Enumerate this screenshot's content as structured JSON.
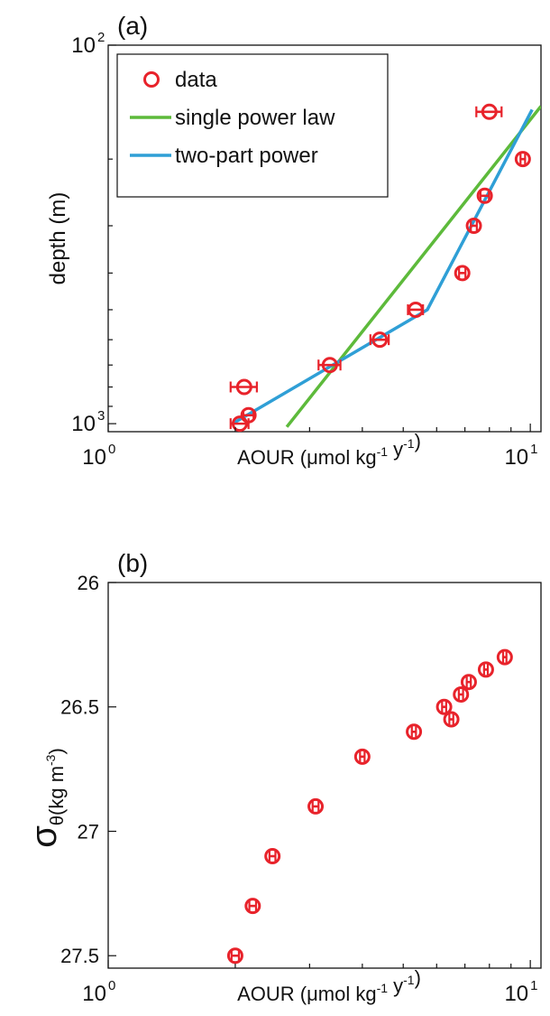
{
  "colors": {
    "data": "#e8232b",
    "single_power": "#5dba3b",
    "two_part": "#2f9fd6",
    "axis": "#111111"
  },
  "chart_data": [
    {
      "panel_label": "(a)",
      "type": "scatter",
      "xscale": "log",
      "yscale": "log",
      "y_reversed": true,
      "xlim": [
        1,
        10.6
      ],
      "ylim": [
        1050,
        100
      ],
      "xlabel": "AOUR (μmol kg⁻¹ y⁻¹)",
      "ylabel": "depth (m)",
      "x_ticks": [
        {
          "value": 1,
          "base": "10",
          "exp": "0"
        },
        {
          "value": 10,
          "base": "10",
          "exp": "1"
        }
      ],
      "y_ticks": [
        {
          "value": 100,
          "base": "10",
          "exp": "2"
        },
        {
          "value": 1000,
          "base": "10",
          "exp": "3"
        }
      ],
      "legend": {
        "position": "top-left",
        "entries": [
          {
            "label": "data",
            "kind": "marker",
            "color_key": "data"
          },
          {
            "label": "single power law",
            "kind": "line",
            "color_key": "single_power"
          },
          {
            "label": "two-part power",
            "kind": "line",
            "color_key": "two_part"
          }
        ]
      },
      "series": [
        {
          "name": "data",
          "kind": "points",
          "color_key": "data",
          "points": [
            {
              "x": 8.0,
              "y": 150,
              "xerr": 0.55
            },
            {
              "x": 9.6,
              "y": 200,
              "xerr": 0.12
            },
            {
              "x": 7.8,
              "y": 250,
              "xerr": 0.18
            },
            {
              "x": 7.35,
              "y": 300,
              "xerr": 0.12
            },
            {
              "x": 6.9,
              "y": 400,
              "xerr": 0.12
            },
            {
              "x": 5.35,
              "y": 500,
              "xerr": 0.22
            },
            {
              "x": 4.4,
              "y": 600,
              "xerr": 0.22
            },
            {
              "x": 3.35,
              "y": 700,
              "xerr": 0.2
            },
            {
              "x": 2.1,
              "y": 800,
              "xerr": 0.15
            },
            {
              "x": 2.15,
              "y": 950,
              "xerr": 0.06
            },
            {
              "x": 2.05,
              "y": 1000,
              "xerr": 0.1
            }
          ]
        },
        {
          "name": "single power law",
          "kind": "line",
          "color_key": "single_power",
          "points": [
            {
              "x": 2.65,
              "y": 1020
            },
            {
              "x": 10.6,
              "y": 145
            }
          ]
        },
        {
          "name": "two-part power",
          "kind": "line",
          "color_key": "two_part",
          "points": [
            {
              "x": 1.97,
              "y": 1000
            },
            {
              "x": 5.7,
              "y": 500
            },
            {
              "x": 10.1,
              "y": 148
            }
          ]
        }
      ]
    },
    {
      "panel_label": "(b)",
      "type": "scatter",
      "xscale": "log",
      "yscale": "linear",
      "y_reversed": true,
      "xlim": [
        1,
        10.6
      ],
      "ylim": [
        27.55,
        26.0
      ],
      "xlabel": "AOUR (μmol kg⁻¹ y⁻¹)",
      "ylabel_main": "σ",
      "ylabel_sub": "θ",
      "ylabel_unit": "(kg m⁻³)",
      "x_ticks": [
        {
          "value": 1,
          "base": "10",
          "exp": "0"
        },
        {
          "value": 10,
          "base": "10",
          "exp": "1"
        }
      ],
      "y_ticks": [
        {
          "value": 26,
          "label": "26"
        },
        {
          "value": 26.5,
          "label": "26.5"
        },
        {
          "value": 27,
          "label": "27"
        },
        {
          "value": 27.5,
          "label": "27.5"
        }
      ],
      "series": [
        {
          "name": "data",
          "kind": "points",
          "color_key": "data",
          "points": [
            {
              "x": 8.7,
              "y": 26.3,
              "xerr": 0.08
            },
            {
              "x": 7.85,
              "y": 26.35,
              "xerr": 0.08
            },
            {
              "x": 7.15,
              "y": 26.4,
              "xerr": 0.08
            },
            {
              "x": 6.85,
              "y": 26.45,
              "xerr": 0.08
            },
            {
              "x": 6.25,
              "y": 26.5,
              "xerr": 0.07
            },
            {
              "x": 6.5,
              "y": 26.55,
              "xerr": 0.07
            },
            {
              "x": 5.3,
              "y": 26.6,
              "xerr": 0.06
            },
            {
              "x": 4.0,
              "y": 26.7,
              "xerr": 0.05
            },
            {
              "x": 3.1,
              "y": 26.9,
              "xerr": 0.05
            },
            {
              "x": 2.45,
              "y": 27.1,
              "xerr": 0.04
            },
            {
              "x": 2.2,
              "y": 27.3,
              "xerr": 0.04
            },
            {
              "x": 2.0,
              "y": 27.5,
              "xerr": 0.04
            }
          ]
        }
      ]
    }
  ]
}
